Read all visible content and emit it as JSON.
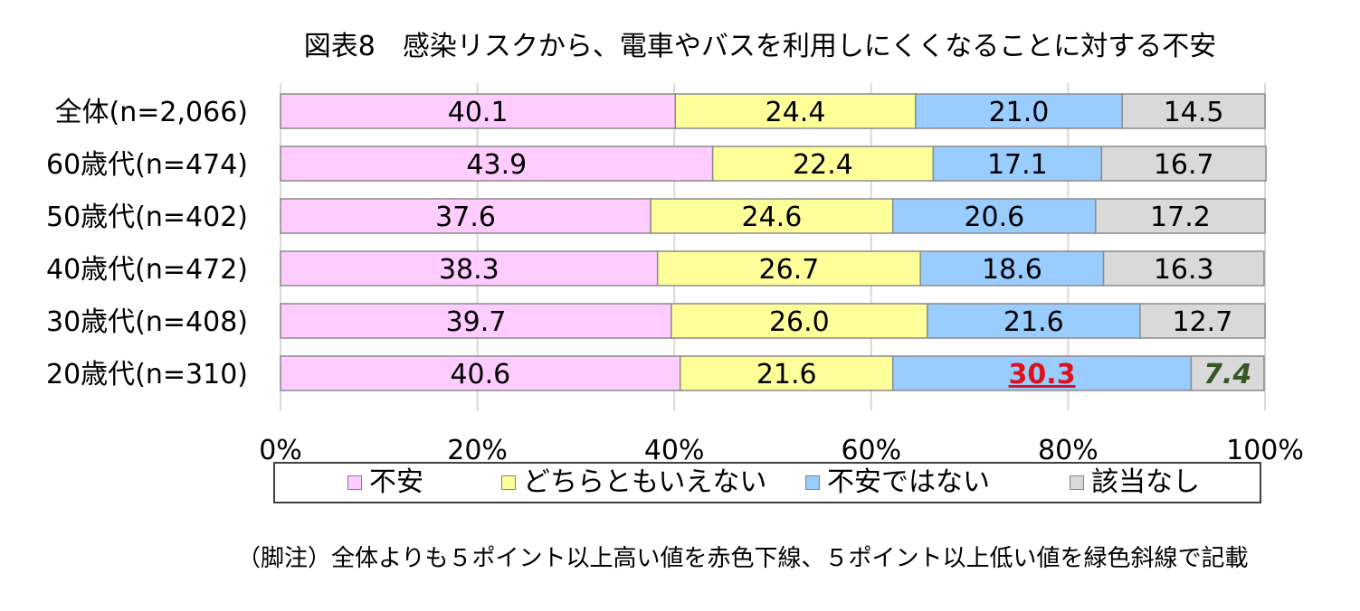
{
  "chart_data": {
    "type": "bar",
    "orientation": "horizontal",
    "stacked": true,
    "title": "図表8　感染リスクから、電車やバスを利用しにくくなることに対する不安",
    "categories": [
      "全体(n=2,066)",
      "60歳代(n=474)",
      "50歳代(n=402)",
      "40歳代(n=472)",
      "30歳代(n=408)",
      "20歳代(n=310)"
    ],
    "series": [
      {
        "name": "不安",
        "color": "#FFCCFF",
        "values": [
          40.1,
          43.9,
          37.6,
          38.3,
          39.7,
          40.6
        ],
        "labels": [
          "40.1",
          "43.9",
          "37.6",
          "38.3",
          "39.7",
          "40.6"
        ]
      },
      {
        "name": "どちらともいえない",
        "color": "#FFFF99",
        "values": [
          24.4,
          22.4,
          24.6,
          26.7,
          26.0,
          21.6
        ],
        "labels": [
          "24.4",
          "22.4",
          "24.6",
          "26.7",
          "26.0",
          "21.6"
        ]
      },
      {
        "name": "不安ではない",
        "color": "#99CCFF",
        "values": [
          21.0,
          17.1,
          20.6,
          18.6,
          21.6,
          30.3
        ],
        "labels": [
          "21.0",
          "17.1",
          "20.6",
          "18.6",
          "21.6",
          "30.3"
        ]
      },
      {
        "name": "該当なし",
        "color": "#D9D9D9",
        "values": [
          14.5,
          16.7,
          17.2,
          16.3,
          12.7,
          7.4
        ],
        "labels": [
          "14.5",
          "16.7",
          "17.2",
          "16.3",
          "12.7",
          "7.4"
        ]
      }
    ],
    "highlights": [
      {
        "category": "20歳代(n=310)",
        "series": "不安ではない",
        "style": "red-bold-underline",
        "color": "#E0101A"
      },
      {
        "category": "20歳代(n=310)",
        "series": "該当なし",
        "style": "green-bold-italic",
        "color": "#375623"
      }
    ],
    "xaxis": {
      "ticks": [
        "0%",
        "20%",
        "40%",
        "60%",
        "80%",
        "100%"
      ],
      "range": [
        0,
        100
      ]
    },
    "grid": true,
    "legend_position": "bottom",
    "footnote": "（脚注）全体よりも５ポイント以上高い値を赤色下線、５ポイント以上低い値を緑色斜線で記載"
  }
}
